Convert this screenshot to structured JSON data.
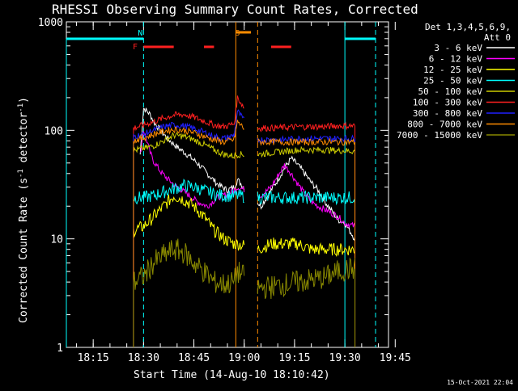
{
  "chart_data": {
    "type": "line",
    "title": "RHESSI Observing Summary Count Rates, Corrected",
    "xlabel": "Start Time (14-Aug-10 18:10:42)",
    "ylabel_main": "Corrected Count Rate (s",
    "ylabel_sup1": "-1",
    "ylabel_mid": " detector",
    "ylabel_sup2": "-1",
    "ylabel_end": ")",
    "yscale": "log",
    "ylim": [
      1,
      1000
    ],
    "xlim_minutes_after_1810": [
      -3,
      93
    ],
    "x_tick_labels": [
      "18:15",
      "18:30",
      "18:45",
      "19:00",
      "19:15",
      "19:30",
      "19:45"
    ],
    "x_tick_minutes": [
      5,
      20,
      35,
      50,
      65,
      80,
      95
    ],
    "y_tick_labels": [
      "1",
      "10",
      "100",
      "1000"
    ],
    "y_tick_values": [
      1,
      10,
      100,
      1000
    ],
    "legend_header": [
      "Det 1,3,4,5,6,9,",
      "Att 0"
    ],
    "footer_date": "15-Oct-2021 22:04",
    "flags": [
      {
        "label": "N",
        "color": "#00ffff",
        "at_minute": 19
      },
      {
        "label": "F",
        "color": "#ff2020",
        "at_minute": 17.5
      },
      {
        "label": "S",
        "color": "#ff8c00",
        "at_minute": 48
      }
    ],
    "segments_minutes": {
      "night_end": 20,
      "night_start": 80,
      "data_gap": [
        50,
        54
      ],
      "saa_start": 47.5,
      "saa_end": 54
    },
    "series": [
      {
        "name": "3 - 6 keV",
        "color": "#ffffff",
        "x": [
          19,
          20,
          21,
          22,
          23,
          25,
          27,
          30,
          33,
          36,
          39,
          42,
          45,
          47,
          48,
          55,
          58,
          60,
          62,
          64,
          66,
          68,
          70,
          72,
          75,
          78,
          80,
          83
        ],
        "values": [
          60,
          160,
          150,
          140,
          120,
          100,
          85,
          70,
          60,
          50,
          40,
          32,
          28,
          30,
          35,
          20,
          28,
          35,
          45,
          55,
          48,
          40,
          33,
          28,
          20,
          15,
          14,
          10
        ]
      },
      {
        "name": "6 - 12 keV",
        "color": "#ff00ff",
        "x": [
          19,
          20,
          21,
          22,
          23,
          25,
          27,
          30,
          33,
          36,
          39,
          42,
          45,
          47,
          48,
          55,
          58,
          60,
          62,
          64,
          66,
          68,
          70,
          72,
          75,
          78,
          80,
          83
        ],
        "values": [
          60,
          100,
          80,
          62,
          52,
          42,
          36,
          30,
          26,
          22,
          20,
          24,
          26,
          28,
          30,
          25,
          30,
          38,
          48,
          40,
          32,
          26,
          22,
          20,
          18,
          16,
          14,
          13
        ]
      },
      {
        "name": "12 - 25 keV",
        "color": "#ffff00",
        "x": [
          17,
          20,
          23,
          26,
          29,
          32,
          35,
          38,
          41,
          44,
          47,
          48,
          54,
          58,
          62,
          66,
          70,
          74,
          78,
          80,
          83
        ],
        "values": [
          12,
          13,
          16,
          20,
          25,
          23,
          20,
          16,
          12,
          10,
          9,
          9,
          8,
          9,
          9,
          9,
          8,
          8,
          8,
          8,
          8
        ]
      },
      {
        "name": "25 - 50 keV",
        "color": "#00ffff",
        "x": [
          17,
          20,
          23,
          26,
          29,
          32,
          35,
          38,
          41,
          44,
          47,
          48,
          54,
          58,
          62,
          66,
          70,
          74,
          78,
          80,
          83
        ],
        "values": [
          24,
          24,
          25,
          27,
          29,
          31,
          30,
          28,
          26,
          25,
          25,
          25,
          24,
          24,
          24,
          24,
          24,
          24,
          24,
          24,
          24
        ]
      },
      {
        "name": "50 - 100 keV",
        "color": "#cccc00",
        "x": [
          17,
          20,
          23,
          26,
          29,
          32,
          35,
          38,
          41,
          44,
          47,
          48,
          54,
          58,
          62,
          66,
          70,
          74,
          78,
          80,
          83
        ],
        "values": [
          65,
          68,
          72,
          80,
          90,
          88,
          82,
          74,
          66,
          60,
          58,
          60,
          60,
          62,
          64,
          66,
          66,
          66,
          65,
          65,
          64
        ]
      },
      {
        "name": "100 - 300 keV",
        "color": "#ff2020",
        "x": [
          17,
          20,
          23,
          26,
          29,
          32,
          35,
          38,
          41,
          44,
          47,
          48,
          54,
          58,
          62,
          66,
          70,
          74,
          78,
          80,
          83
        ],
        "values": [
          105,
          112,
          120,
          130,
          138,
          140,
          132,
          122,
          112,
          108,
          115,
          200,
          105,
          105,
          106,
          108,
          108,
          108,
          110,
          110,
          110
        ]
      },
      {
        "name": "300 - 800 keV",
        "color": "#2020ff",
        "x": [
          17,
          20,
          23,
          26,
          29,
          32,
          35,
          38,
          41,
          44,
          47,
          48,
          54,
          58,
          62,
          66,
          70,
          74,
          78,
          80,
          83
        ],
        "values": [
          88,
          92,
          100,
          108,
          112,
          110,
          104,
          96,
          88,
          84,
          90,
          150,
          82,
          82,
          82,
          84,
          84,
          84,
          84,
          84,
          84
        ]
      },
      {
        "name": "800 - 7000 keV",
        "color": "#ff8c00",
        "x": [
          17,
          20,
          23,
          26,
          29,
          32,
          35,
          38,
          41,
          44,
          47,
          48,
          54,
          58,
          62,
          66,
          70,
          74,
          78,
          80,
          83
        ],
        "values": [
          80,
          85,
          92,
          98,
          102,
          100,
          95,
          88,
          82,
          78,
          82,
          120,
          78,
          78,
          78,
          78,
          78,
          78,
          78,
          78,
          78
        ]
      },
      {
        "name": "7000 - 15000 keV",
        "color": "#888800",
        "x": [
          17,
          20,
          23,
          26,
          29,
          32,
          35,
          38,
          41,
          44,
          47,
          48,
          54,
          58,
          62,
          66,
          70,
          74,
          78,
          80,
          83
        ],
        "values": [
          4,
          4.5,
          6,
          7,
          8,
          7.5,
          6,
          5,
          4,
          3.8,
          4,
          5,
          3.5,
          3.6,
          3.8,
          4,
          4.2,
          4.4,
          5,
          5.2,
          5.3
        ]
      }
    ]
  }
}
